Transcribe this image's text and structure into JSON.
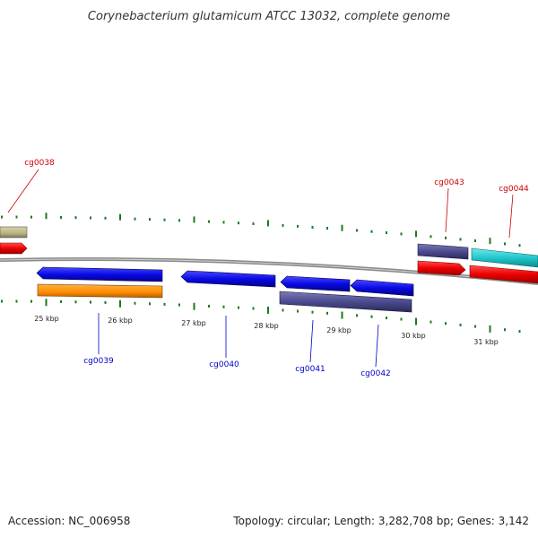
{
  "title": "Corynebacterium glutamicum ATCC 13032, complete genome",
  "footer": {
    "accession": "Accession: NC_006958",
    "topology": "Topology: circular; Length: 3,282,708 bp; Genes: 3,142"
  },
  "ticks": [
    "25 kbp",
    "26 kbp",
    "27 kbp",
    "28 kbp",
    "29 kbp",
    "30 kbp",
    "31 kbp"
  ],
  "genes": [
    {
      "name": "cg0038",
      "strand": "forward"
    },
    {
      "name": "cg0039",
      "strand": "reverse"
    },
    {
      "name": "cg0040",
      "strand": "reverse"
    },
    {
      "name": "cg0041",
      "strand": "reverse"
    },
    {
      "name": "cg0042",
      "strand": "reverse"
    },
    {
      "name": "cg0043",
      "strand": "forward"
    },
    {
      "name": "cg0044",
      "strand": "forward"
    }
  ],
  "colors": {
    "forward_label": "#cc0000",
    "reverse_label": "#0000cc",
    "backbone": "#888888",
    "tick": "#1a7a1a",
    "cds_blue": "#0a0ae6",
    "cds_orange": "#ff8c00",
    "cds_red": "#ee0000",
    "cds_slate": "#4b4b8f",
    "cds_cyan": "#20c8cc",
    "cds_olive": "#b8b480"
  }
}
